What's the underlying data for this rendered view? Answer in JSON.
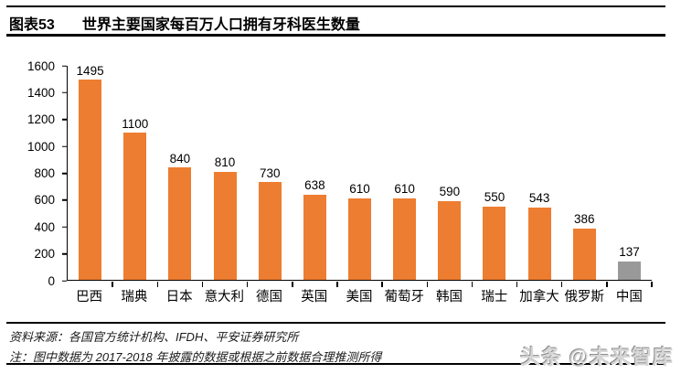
{
  "header": {
    "figure_label": "图表53",
    "title": "世界主要国家每百万人口拥有牙科医生数量"
  },
  "chart_data": {
    "type": "bar",
    "title": "世界主要国家每百万人口拥有牙科医生数量",
    "categories": [
      "巴西",
      "瑞典",
      "日本",
      "意大利",
      "德国",
      "英国",
      "美国",
      "葡萄牙",
      "韩国",
      "瑞士",
      "加拿大",
      "俄罗斯",
      "中国"
    ],
    "values": [
      1495,
      1100,
      840,
      810,
      730,
      638,
      610,
      610,
      590,
      550,
      543,
      386,
      137
    ],
    "bar_colors": [
      "#ED7D31",
      "#ED7D31",
      "#ED7D31",
      "#ED7D31",
      "#ED7D31",
      "#ED7D31",
      "#ED7D31",
      "#ED7D31",
      "#ED7D31",
      "#ED7D31",
      "#ED7D31",
      "#ED7D31",
      "#999999"
    ],
    "xlabel": "",
    "ylabel": "",
    "ylim": [
      0,
      1600
    ],
    "yticks": [
      0,
      200,
      400,
      600,
      800,
      1000,
      1200,
      1400,
      1600
    ],
    "grid": false,
    "legend": false,
    "data_labels": true,
    "colors": {
      "primary": "#ED7D31",
      "highlight": "#999999",
      "axis": "#000000"
    }
  },
  "footer": {
    "source": "资料来源：各国官方统计机构、IFDH、平安证券研究所",
    "note": "注：图中数据为 2017-2018 年披露的数据或根据之前数据合理推测所得",
    "watermark": "头条 @未来智库"
  }
}
